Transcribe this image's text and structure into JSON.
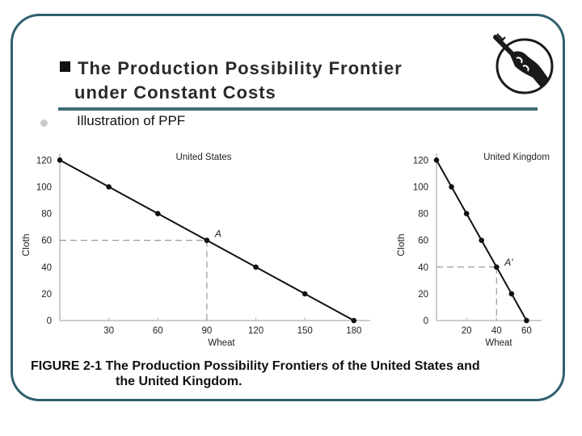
{
  "slide": {
    "title_line1": "The Production Possibility Frontier",
    "title_line2": "under Constant Costs",
    "subtitle": "Illustration of PPF",
    "caption_line1": "FIGURE 2-1 The Production Possibility Frontiers of the United States and",
    "caption_line2": "the United Kingdom.",
    "frame_color": "#2f5f6e",
    "rule_color": "#3f6b78"
  },
  "icons": {
    "logo": "hand-with-key-icon"
  },
  "chart_data": [
    {
      "type": "line",
      "title": "United States",
      "xlabel": "Wheat",
      "ylabel": "Cloth",
      "x_ticks": [
        0,
        30,
        60,
        90,
        120,
        150,
        180
      ],
      "y_ticks": [
        0,
        20,
        40,
        60,
        80,
        100,
        120
      ],
      "xlim": [
        0,
        190
      ],
      "ylim": [
        0,
        125
      ],
      "x": [
        0,
        30,
        60,
        90,
        120,
        150,
        180
      ],
      "y": [
        120,
        100,
        80,
        60,
        40,
        20,
        0
      ],
      "annotation": {
        "label": "A",
        "x": 90,
        "y": 60
      }
    },
    {
      "type": "line",
      "title": "United Kingdom",
      "xlabel": "Wheat",
      "ylabel": "Cloth",
      "x_ticks": [
        0,
        20,
        40,
        60
      ],
      "y_ticks": [
        0,
        20,
        40,
        60,
        80,
        100,
        120
      ],
      "xlim": [
        0,
        70
      ],
      "ylim": [
        0,
        125
      ],
      "x": [
        0,
        10,
        20,
        30,
        40,
        50,
        60
      ],
      "y": [
        120,
        100,
        80,
        60,
        40,
        20,
        0
      ],
      "annotation": {
        "label": "A'",
        "x": 40,
        "y": 40
      }
    }
  ]
}
